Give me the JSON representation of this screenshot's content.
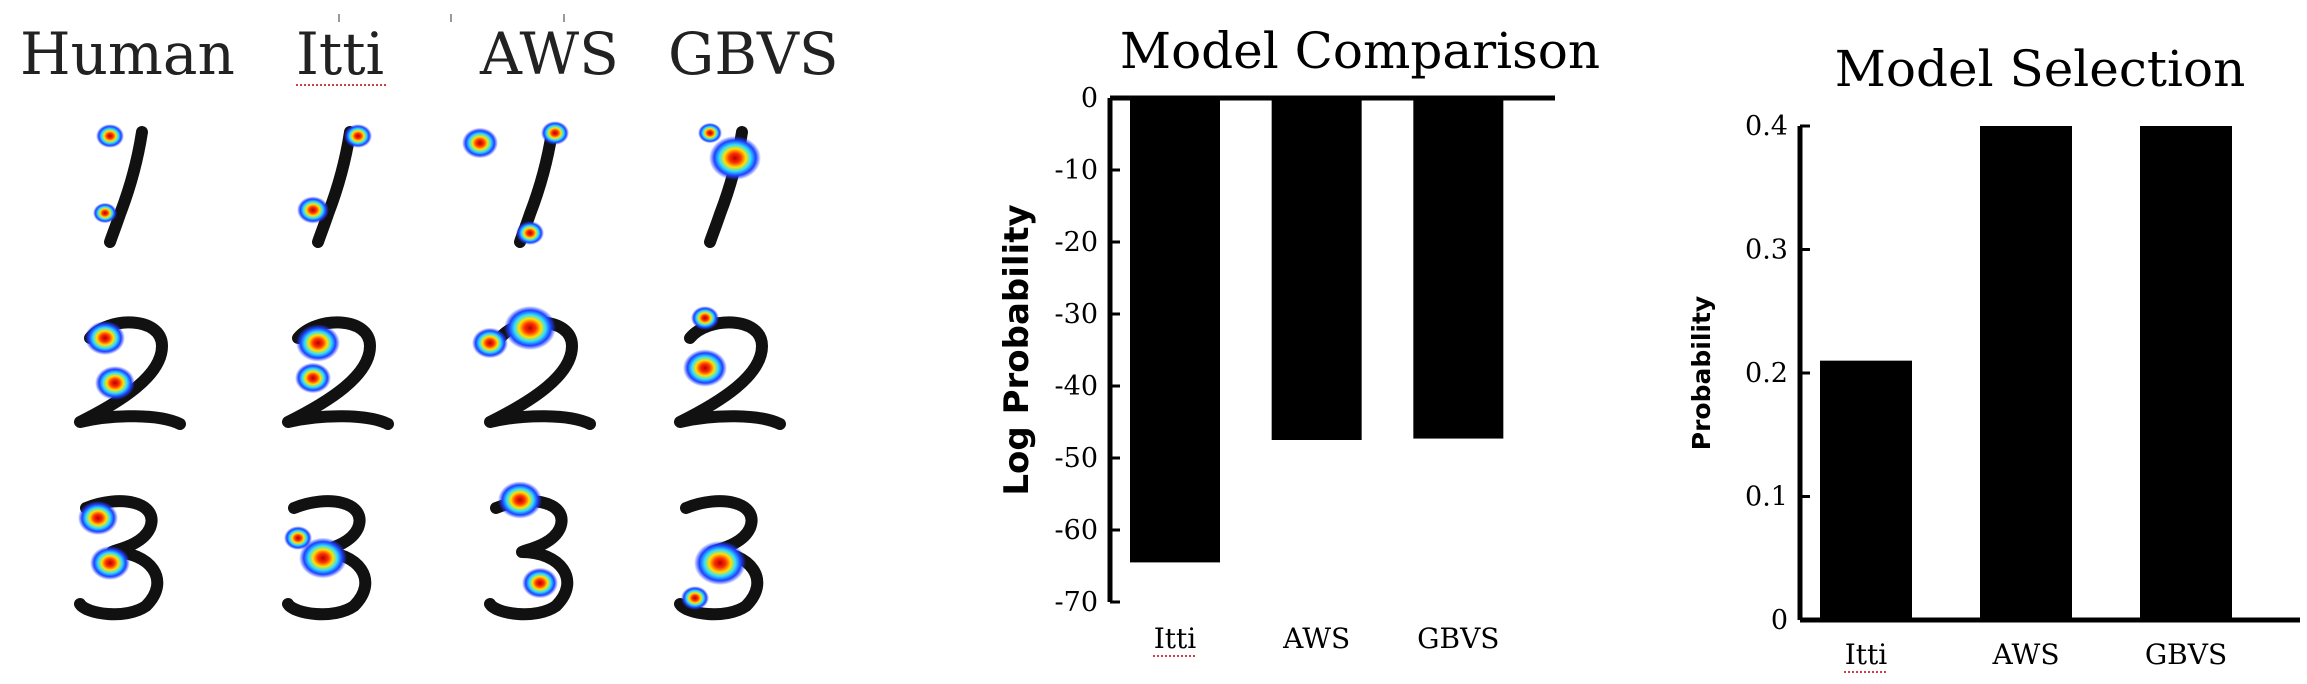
{
  "heatmap_grid": {
    "columns": [
      "Human",
      "Itti",
      "AWS",
      "GBVS"
    ],
    "digits": [
      "1",
      "2",
      "3"
    ]
  },
  "chart_data": [
    {
      "type": "bar",
      "title": "Model Comparison",
      "ylabel": "Log Probability",
      "xlabel": "",
      "categories": [
        "Itti",
        "AWS",
        "GBVS"
      ],
      "values": [
        -64.5,
        -47.5,
        -47.3
      ],
      "ylim": [
        -70,
        0
      ],
      "yticks": [
        "0",
        "-10",
        "-20",
        "-30",
        "-40",
        "-50",
        "-60",
        "-70"
      ],
      "bar_color": "#000000"
    },
    {
      "type": "bar",
      "title": "Model Selection",
      "ylabel": "Probability",
      "xlabel": "",
      "categories": [
        "Itti",
        "AWS",
        "GBVS"
      ],
      "values": [
        0.21,
        0.4,
        0.4
      ],
      "ylim": [
        0,
        0.4
      ],
      "yticks": [
        "0",
        "0.1",
        "0.2",
        "0.3",
        "0.4"
      ],
      "bar_color": "#000000"
    }
  ]
}
